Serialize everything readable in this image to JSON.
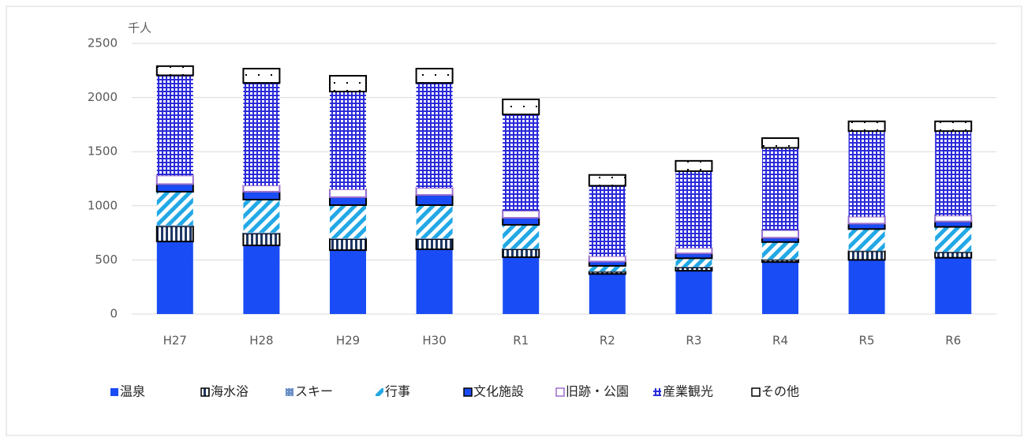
{
  "chart_data": {
    "type": "stacked_bar",
    "y_unit": "千人",
    "categories": [
      "H27",
      "H28",
      "H29",
      "H30",
      "R1",
      "R2",
      "R3",
      "R4",
      "R5",
      "R6"
    ],
    "series": [
      {
        "name": "温泉",
        "color": "#1a4cf5",
        "pattern": "solid",
        "values": [
          670,
          634,
          590,
          598,
          525,
          370,
          400,
          480,
          500,
          520
        ]
      },
      {
        "name": "海水浴",
        "color": "#1f3864",
        "pattern": "vstripe",
        "values": [
          140,
          109,
          102,
          94,
          73,
          20,
          30,
          20,
          80,
          50
        ]
      },
      {
        "name": "スキー",
        "color": "#6a8fc6",
        "pattern": "dots",
        "values": [
          10,
          10,
          8,
          8,
          5,
          5,
          5,
          5,
          5,
          5
        ]
      },
      {
        "name": "行事",
        "color": "#22a8e6",
        "pattern": "diagonal",
        "values": [
          310,
          304,
          306,
          306,
          221,
          50,
          80,
          160,
          200,
          230
        ]
      },
      {
        "name": "文化施設",
        "color": "#1a4cf5",
        "pattern": "bordered",
        "values": [
          70,
          73,
          73,
          94,
          65,
          40,
          45,
          40,
          50,
          50
        ]
      },
      {
        "name": "旧跡・公園",
        "color": "#9b6fd0",
        "pattern": "outline",
        "values": [
          80,
          58,
          73,
          66,
          66,
          50,
          50,
          70,
          65,
          55
        ]
      },
      {
        "name": "産業観光",
        "color": "#2b2bd9",
        "pattern": "grid",
        "values": [
          925,
          947,
          903,
          969,
          889,
          650,
          710,
          760,
          790,
          780
        ]
      },
      {
        "name": "その他",
        "color": "#000000",
        "pattern": "whitedots",
        "values": [
          85,
          132,
          146,
          132,
          139,
          100,
          95,
          90,
          90,
          90
        ]
      }
    ],
    "ylim": [
      0,
      2500
    ],
    "yticks": [
      0,
      500,
      1000,
      1500,
      2000,
      2500
    ],
    "grid": true,
    "legend": "bottom"
  }
}
